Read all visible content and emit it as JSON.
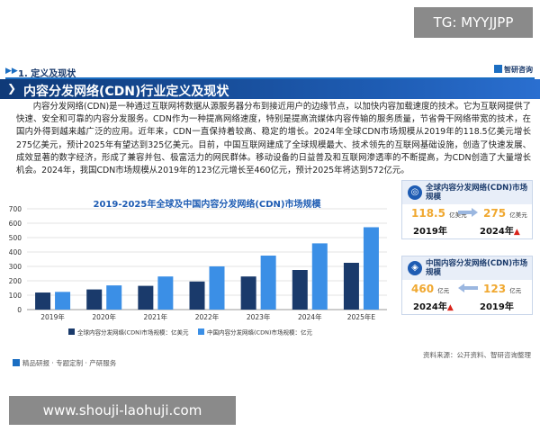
{
  "watermark_top": "TG: MYYJJPP",
  "watermark_bottom": "www.shouji-laohuji.com",
  "section": {
    "label": "1. 定义及现状"
  },
  "brand": {
    "name": "智研咨询"
  },
  "banner": {
    "title": "内容分发网络(CDN)行业定义及现状"
  },
  "paragraph": "内容分发网络(CDN)是一种通过互联网将数据从源服务器分布到接近用户的边缘节点，以加快内容加载速度的技术。它为互联网提供了快速、安全和可靠的内容分发服务。CDN作为一种提高网络速度，特别是提高流媒体内容传输的服务质量，节省骨干网络带宽的技术，在国内外得到越来越广泛的应用。近年来，CDN一直保持着较高、稳定的增长。2024年全球CDN市场规模从2019年的118.5亿美元增长275亿美元，预计2025年有望达到325亿美元。目前，中国互联网建成了全球规模最大、技术领先的互联网基础设施，创造了快速发展、成效显著的数字经济，形成了兼容并包、极富活力的网民群体。移动设备的日益普及和互联网渗透率的不断提高，为CDN创造了大量增长机会。2024年，我国CDN市场规模从2019年的123亿元增长至460亿元，预计2025年将达到572亿元。",
  "chart_data": {
    "type": "bar",
    "title": "2019-2025年全球及中国内容分发网络(CDN)市场规模",
    "categories": [
      "2019年",
      "2020年",
      "2021年",
      "2022年",
      "2023年",
      "2024年",
      "2025年E"
    ],
    "ylim": [
      0,
      700
    ],
    "yticks": [
      "0",
      "100",
      "200",
      "300",
      "400",
      "500",
      "600",
      "700"
    ],
    "series": [
      {
        "name": "全球内容分发网络(CDN)市场规模：亿美元",
        "color": "#1a3a6b",
        "values": [
          118.5,
          140,
          165,
          195,
          230,
          275,
          325
        ]
      },
      {
        "name": "中国内容分发网络(CDN)市场规模：亿元",
        "color": "#3b8fe6",
        "values": [
          123,
          168,
          230,
          300,
          375,
          460,
          572
        ]
      }
    ],
    "legend_position": "bottom"
  },
  "cards": [
    {
      "title": "全球内容分发网络(CDN)市场规模",
      "left_value": "118.5",
      "left_unit": "亿美元",
      "left_year": "2019年",
      "right_value": "275",
      "right_unit": "亿美元",
      "right_year": "2024年"
    },
    {
      "title": "中国内容分发网络(CDN)市场规模",
      "left_value": "460",
      "left_unit": "亿元",
      "left_year": "2024年",
      "right_value": "123",
      "right_unit": "亿元",
      "right_year": "2019年"
    }
  ],
  "source": "资料来源：公开资料、智研咨询整理",
  "footer": "精品研报 · 专题定制 · 产研服务"
}
